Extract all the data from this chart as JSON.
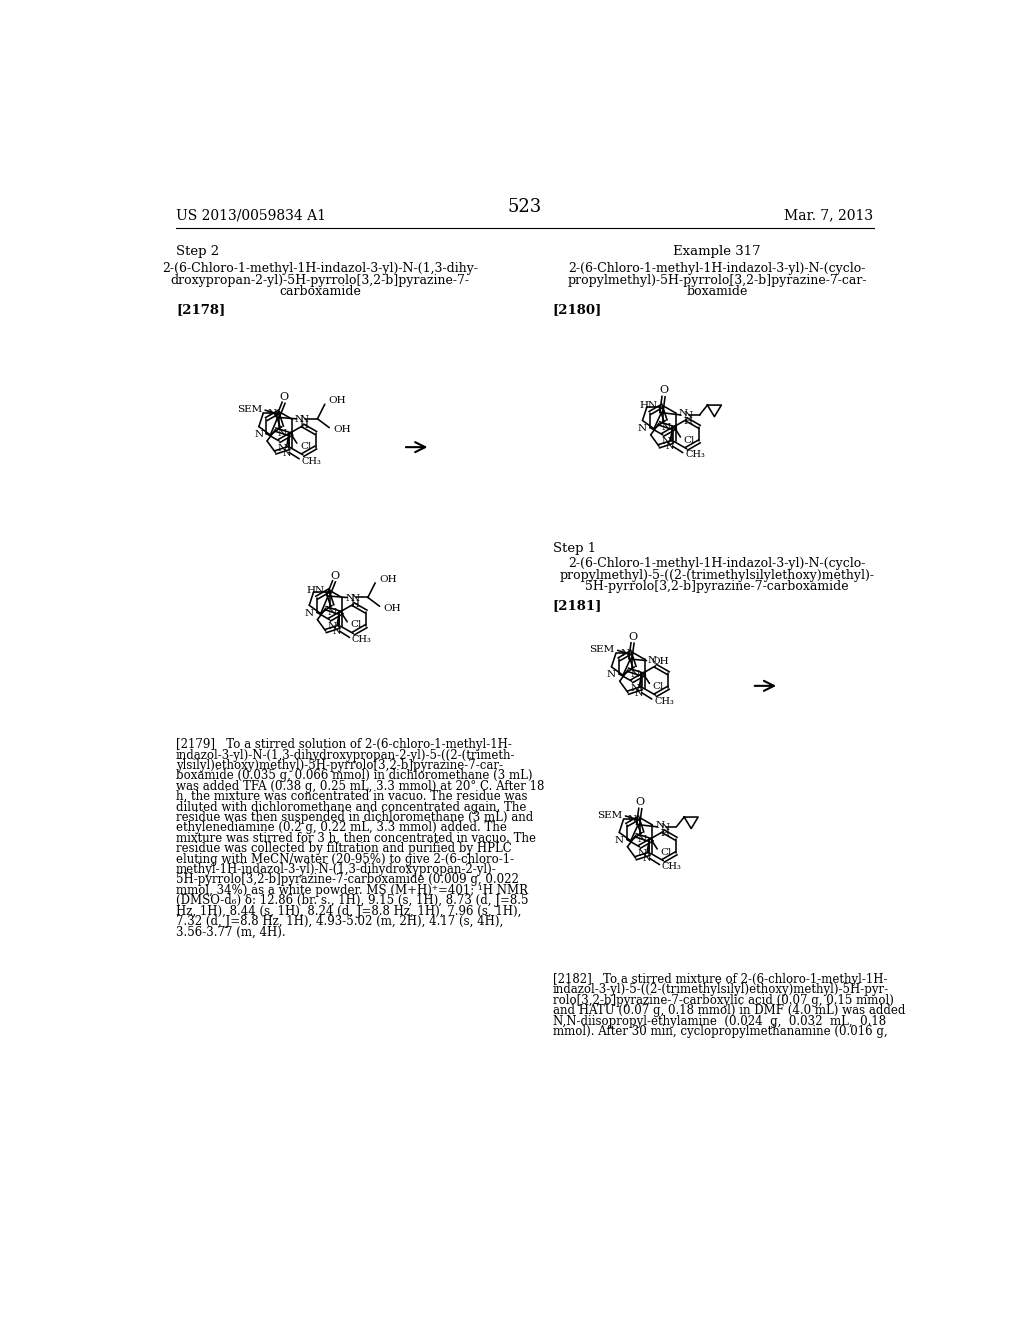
{
  "page_number": "523",
  "header_left": "US 2013/0059834 A1",
  "header_right": "Mar. 7, 2013",
  "background_color": "#ffffff",
  "text_color": "#000000",
  "left_step_label": "Step 2",
  "left_name_lines": [
    "2-(6-Chloro-1-methyl-1H-indazol-3-yl)-N-(1,3-dihy-",
    "droxypropan-2-yl)-5H-pyrrolo[3,2-b]pyrazine-7-",
    "carboxamide"
  ],
  "left_bracket": "[2178]",
  "right_example": "Example 317",
  "right_name_lines": [
    "2-(6-Chloro-1-methyl-1H-indazol-3-yl)-N-(cyclo-",
    "propylmethyl)-5H-pyrrolo[3,2-b]pyrazine-7-car-",
    "boxamide"
  ],
  "right_bracket": "[2180]",
  "step1_label": "Step 1",
  "step1_name_lines": [
    "2-(6-Chloro-1-methyl-1H-indazol-3-yl)-N-(cyclo-",
    "propylmethyl)-5-((2-(trimethylsilylethoxy)methyl)-",
    "5H-pyrrolo[3,2-b]pyrazine-7-carboxamide"
  ],
  "step1_bracket": "[2181]",
  "para_2179_lines": [
    "[2179]   To a stirred solution of 2-(6-chloro-1-methyl-1H-",
    "indazol-3-yl)-N-(1,3-dihydroxypropan-2-yl)-5-((2-(trimeth-",
    "ylsilyl)ethoxy)methyl)-5H-pyrrolo[3,2-b]pyrazine-7-car-",
    "boxamide (0.035 g, 0.066 mmol) in dichloromethane (3 mL)",
    "was added TFA (0.38 g, 0.25 mL, 3.3 mmol) at 20° C. After 18",
    "h, the mixture was concentrated in vacuo. The residue was",
    "diluted with dichloromethane and concentrated again. The",
    "residue was then suspended in dichloromethane (3 mL) and",
    "ethylenediamine (0.2 g, 0.22 mL, 3.3 mmol) added. The",
    "mixture was stirred for 3 h, then concentrated in vacuo. The",
    "residue was collected by filtration and purified by HPLC",
    "eluting with MeCN/water (20-95%) to give 2-(6-chloro-1-",
    "methyl-1H-indazol-3-yl)-N-(1,3-dihydroxypropan-2-yl)-",
    "5H-pyrrolo[3,2-b]pyrazine-7-carboxamide (0.009 g, 0.022",
    "mmol, 34%) as a white powder. MS (M+H)⁺=401; ¹H NMR",
    "(DMSO-d₆) δ: 12.86 (br. s., 1H), 9.15 (s, 1H), 8.73 (d, J=8.5",
    "Hz, 1H), 8.44 (s, 1H), 8.24 (d, J=8.8 Hz, 1H), 7.96 (s, 1H),",
    "7.32 (d, J=8.8 Hz, 1H), 4.93-5.02 (m, 2H), 4.17 (s, 4H),",
    "3.56-3.77 (m, 4H)."
  ],
  "para_2182_lines": [
    "[2182]   To a stirred mixture of 2-(6-chloro-1-methyl-1H-",
    "indazol-3-yl)-5-((2-(trimethylsilyl)ethoxy)methyl)-5H-pyr-",
    "rolo[3,2-b]pyrazine-7-carboxylic acid (0.07 g, 0.15 mmol)",
    "and HATU (0.07 g, 0.18 mmol) in DMF (4.0 mL) was added",
    "N,N-diisopropyl-ethylamine  (0.024  g,  0.032  mL,  0.18",
    "mmol). After 30 min, cyclopropylmethanamine (0.016 g,"
  ]
}
